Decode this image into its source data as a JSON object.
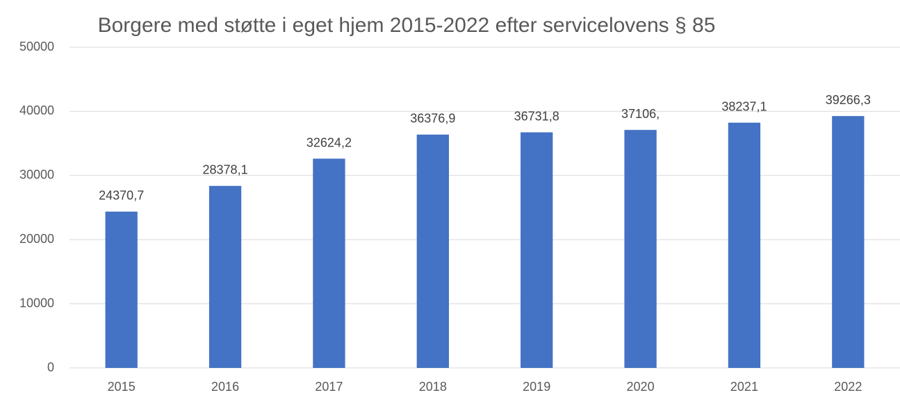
{
  "chart_data": {
    "type": "bar",
    "title": "Borgere med støtte i eget hjem 2015-2022 efter servicelovens § 85",
    "categories": [
      "2015",
      "2016",
      "2017",
      "2018",
      "2019",
      "2020",
      "2021",
      "2022"
    ],
    "values": [
      24370.7,
      28378.1,
      32624.2,
      36376.9,
      36731.8,
      37106,
      38237.1,
      39266.3
    ],
    "value_labels": [
      "24370,7",
      "28378,1",
      "32624,2",
      "36376,9",
      "36731,8",
      "37106,",
      "38237,1",
      "39266,3"
    ],
    "color": "#4472c4",
    "ylim": [
      0,
      50000
    ],
    "yticks": [
      0,
      10000,
      20000,
      30000,
      40000,
      50000
    ],
    "grid": true
  }
}
